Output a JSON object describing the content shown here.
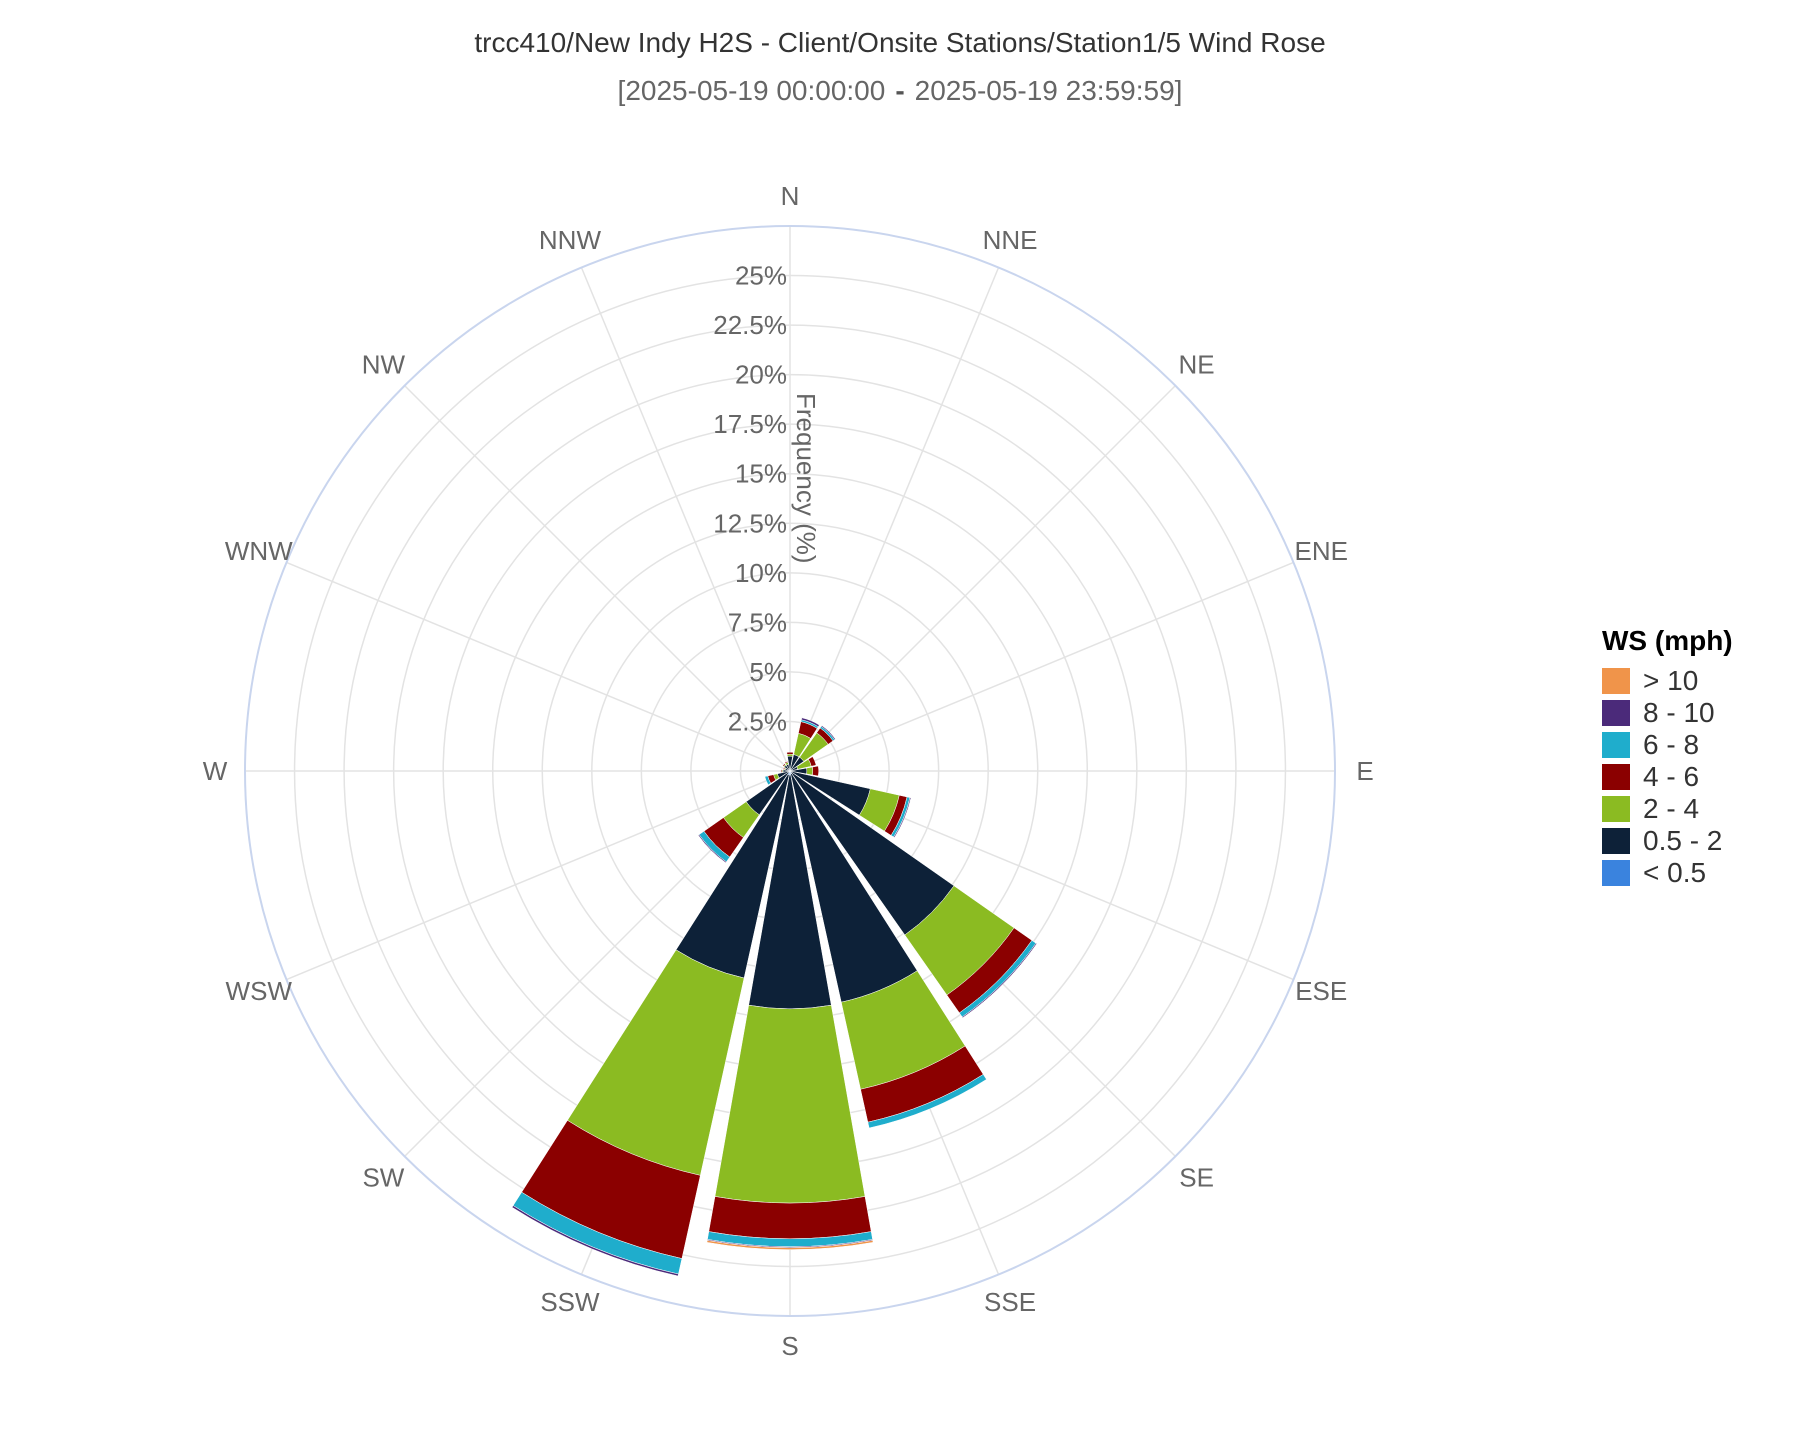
{
  "chart_data": {
    "type": "wind-rose",
    "title": "trcc410/New Indy H2S - Client/Onsite Stations/Station1/5 Wind Rose",
    "subtitle": {
      "start": "[2025-05-19 00:00:00",
      "separator": "-",
      "end": "2025-05-19 23:59:59]"
    },
    "radial_axis_title": "Frequency (%)",
    "radial_range": [
      0,
      27.5
    ],
    "radial_ticks": [
      2.5,
      5,
      7.5,
      10,
      12.5,
      15,
      17.5,
      20,
      22.5,
      25
    ],
    "radial_tick_labels": [
      "2.5%",
      "5%",
      "7.5%",
      "10%",
      "12.5%",
      "15%",
      "17.5%",
      "20%",
      "22.5%",
      "25%"
    ],
    "directions": [
      "N",
      "NNE",
      "NE",
      "ENE",
      "E",
      "ESE",
      "SE",
      "SSE",
      "S",
      "SSW",
      "SW",
      "WSW",
      "W",
      "WNW",
      "NW",
      "NNW"
    ],
    "legend_title": "WS (mph)",
    "legend_placement": "right",
    "series": [
      {
        "name": "< 0.5",
        "color": "#3a83de",
        "values": [
          0.05,
          0.05,
          0.05,
          0.05,
          0.05,
          0.05,
          0.1,
          0.15,
          0.2,
          0.2,
          0.1,
          0.05,
          0.05,
          0.05,
          0.05,
          0.05
        ]
      },
      {
        "name": "0.5 - 2",
        "color": "#0d2138",
        "values": [
          0.7,
          0.8,
          0.8,
          0.35,
          0.8,
          4.1,
          10.0,
          11.8,
          11.8,
          10.5,
          2.6,
          0.6,
          0.3,
          0.2,
          0.3,
          0.3
        ]
      },
      {
        "name": "2 - 4",
        "color": "#8bbb22",
        "values": [
          0.1,
          1.1,
          1.5,
          0.7,
          0.3,
          1.5,
          3.7,
          4.5,
          9.8,
          10.2,
          1.4,
          0.2,
          0.05,
          0.05,
          0.05,
          0.1
        ]
      },
      {
        "name": "4 - 6",
        "color": "#8b0000",
        "values": [
          0.1,
          0.6,
          0.3,
          0.25,
          0.3,
          0.4,
          1.1,
          1.7,
          1.8,
          4.3,
          1.2,
          0.3,
          0.05,
          0.05,
          0.05,
          0.05
        ]
      },
      {
        "name": "6 - 8",
        "color": "#1fadcc",
        "values": [
          0,
          0.1,
          0.1,
          0,
          0,
          0.15,
          0.25,
          0.3,
          0.4,
          0.8,
          0.3,
          0.15,
          0,
          0,
          0,
          0
        ]
      },
      {
        "name": "8 - 10",
        "color": "#4b2a7a",
        "values": [
          0,
          0.1,
          0.05,
          0,
          0,
          0.05,
          0.05,
          0,
          0.05,
          0.1,
          0.05,
          0,
          0,
          0,
          0,
          0
        ]
      },
      {
        "name": "> 10",
        "color": "#f0944a",
        "values": [
          0,
          0,
          0,
          0,
          0,
          0,
          0,
          0,
          0.1,
          0,
          0,
          0,
          0,
          0,
          0,
          0
        ]
      }
    ],
    "legend_order": [
      "> 10",
      "8 - 10",
      "6 - 8",
      "4 - 6",
      "2 - 4",
      "0.5 - 2",
      "< 0.5"
    ],
    "grid": true
  },
  "colors": {
    "grid": "#e3e3e3",
    "outer_ring": "#c9d5ee",
    "background": "#ffffff"
  }
}
